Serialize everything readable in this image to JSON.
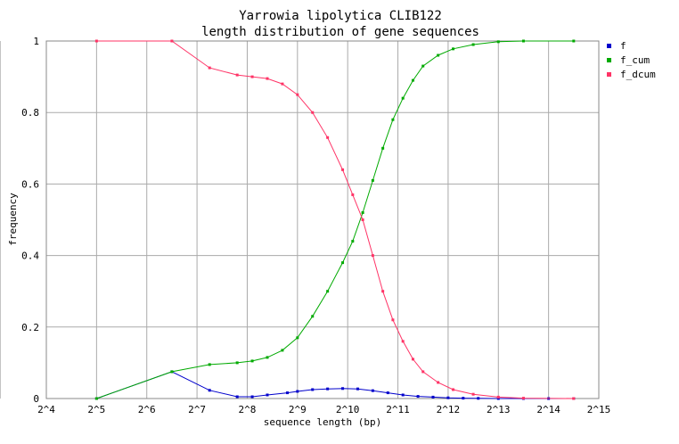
{
  "chart_data": {
    "type": "line",
    "title": [
      "Yarrowia lipolytica CLIB122",
      "length distribution of gene sequences"
    ],
    "xlabel": "sequence length (bp)",
    "ylabel": "frequency",
    "x_scale": "log2",
    "xlim": [
      4,
      15
    ],
    "ylim": [
      0,
      1
    ],
    "x_tick_labels": [
      "2^4",
      "2^5",
      "2^6",
      "2^7",
      "2^8",
      "2^9",
      "2^10",
      "2^11",
      "2^12",
      "2^13",
      "2^14",
      "2^15"
    ],
    "y_tick_labels": [
      "0",
      "0.2",
      "0.4",
      "0.6",
      "0.8",
      "1"
    ],
    "grid": true,
    "legend_position": "right",
    "colors": {
      "f": "#0000cc",
      "f_cum": "#00aa00",
      "f_dcum": "#ff3366",
      "grid": "#aaaaaa"
    },
    "series": [
      {
        "name": "f",
        "points": [
          [
            5,
            0.0
          ],
          [
            6.5,
            0.075
          ],
          [
            7.25,
            0.023
          ],
          [
            7.8,
            0.005
          ],
          [
            8.1,
            0.005
          ],
          [
            8.4,
            0.01
          ],
          [
            8.8,
            0.016
          ],
          [
            9.0,
            0.02
          ],
          [
            9.3,
            0.025
          ],
          [
            9.6,
            0.027
          ],
          [
            9.9,
            0.028
          ],
          [
            10.2,
            0.027
          ],
          [
            10.5,
            0.022
          ],
          [
            10.8,
            0.016
          ],
          [
            11.1,
            0.01
          ],
          [
            11.4,
            0.006
          ],
          [
            11.7,
            0.004
          ],
          [
            12.0,
            0.002
          ],
          [
            12.3,
            0.001
          ],
          [
            12.6,
            0.0005
          ],
          [
            13.0,
            0.0
          ],
          [
            13.5,
            0.0
          ],
          [
            14.0,
            0.0
          ],
          [
            14.5,
            0.0
          ]
        ]
      },
      {
        "name": "f_cum",
        "points": [
          [
            5,
            0.0
          ],
          [
            6.5,
            0.075
          ],
          [
            7.25,
            0.095
          ],
          [
            7.8,
            0.1
          ],
          [
            8.1,
            0.105
          ],
          [
            8.4,
            0.115
          ],
          [
            8.7,
            0.135
          ],
          [
            9.0,
            0.17
          ],
          [
            9.3,
            0.23
          ],
          [
            9.6,
            0.3
          ],
          [
            9.9,
            0.38
          ],
          [
            10.1,
            0.44
          ],
          [
            10.3,
            0.52
          ],
          [
            10.5,
            0.61
          ],
          [
            10.7,
            0.7
          ],
          [
            10.9,
            0.78
          ],
          [
            11.1,
            0.84
          ],
          [
            11.3,
            0.89
          ],
          [
            11.5,
            0.93
          ],
          [
            11.8,
            0.96
          ],
          [
            12.1,
            0.978
          ],
          [
            12.5,
            0.99
          ],
          [
            13.0,
            0.998
          ],
          [
            13.5,
            1.0
          ],
          [
            14.5,
            1.0
          ]
        ]
      },
      {
        "name": "f_dcum",
        "points": [
          [
            5,
            1.0
          ],
          [
            6.5,
            1.0
          ],
          [
            7.25,
            0.925
          ],
          [
            7.8,
            0.905
          ],
          [
            8.1,
            0.9
          ],
          [
            8.4,
            0.895
          ],
          [
            8.7,
            0.88
          ],
          [
            9.0,
            0.85
          ],
          [
            9.3,
            0.8
          ],
          [
            9.6,
            0.73
          ],
          [
            9.9,
            0.64
          ],
          [
            10.1,
            0.57
          ],
          [
            10.3,
            0.5
          ],
          [
            10.5,
            0.4
          ],
          [
            10.7,
            0.3
          ],
          [
            10.9,
            0.22
          ],
          [
            11.1,
            0.16
          ],
          [
            11.3,
            0.11
          ],
          [
            11.5,
            0.075
          ],
          [
            11.8,
            0.045
          ],
          [
            12.1,
            0.025
          ],
          [
            12.5,
            0.012
          ],
          [
            13.0,
            0.004
          ],
          [
            13.5,
            0.001
          ],
          [
            14.5,
            0.0
          ]
        ]
      }
    ]
  }
}
